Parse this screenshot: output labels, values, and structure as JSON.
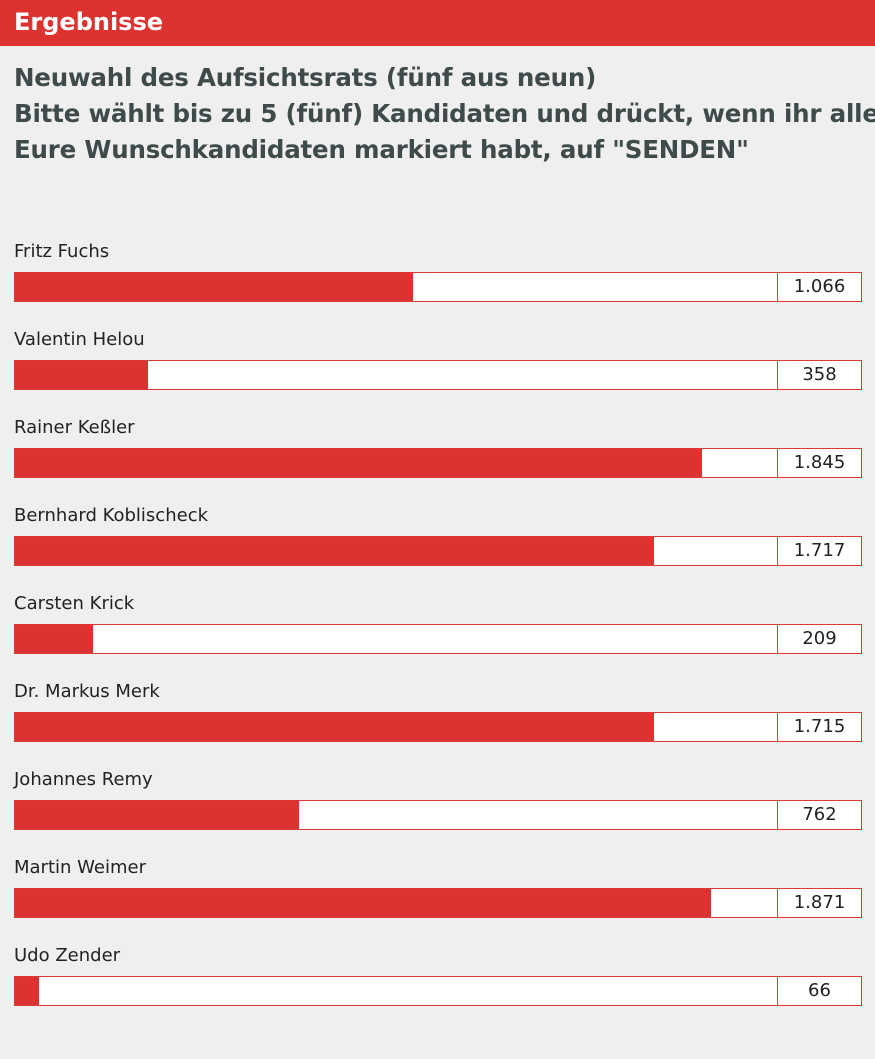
{
  "header": {
    "title": "Ergebnisse",
    "accent_color": "#dc3331"
  },
  "question": {
    "line1": "Neuwahl des Aufsichtsrats (fünf aus neun)",
    "line2": "Bitte wählt bis zu 5 (fünf) Kandidaten und drückt, wenn ihr alle",
    "line3": "Eure Wunschkandidaten markiert habt, auf \"SENDEN\""
  },
  "results": [
    {
      "name": "Fritz Fuchs",
      "votes": "1.066",
      "share": 0.522
    },
    {
      "name": "Valentin Helou",
      "votes": "358",
      "share": 0.175
    },
    {
      "name": "Rainer Keßler",
      "votes": "1.845",
      "share": 0.902
    },
    {
      "name": "Bernhard Koblischeck",
      "votes": "1.717",
      "share": 0.839
    },
    {
      "name": "Carsten Krick",
      "votes": "209",
      "share": 0.102
    },
    {
      "name": "Dr. Markus Merk",
      "votes": "1.715",
      "share": 0.838
    },
    {
      "name": "Johannes Remy",
      "votes": "762",
      "share": 0.373
    },
    {
      "name": "Martin Weimer",
      "votes": "1.871",
      "share": 0.914
    },
    {
      "name": "Udo Zender",
      "votes": "66",
      "share": 0.032
    }
  ]
}
